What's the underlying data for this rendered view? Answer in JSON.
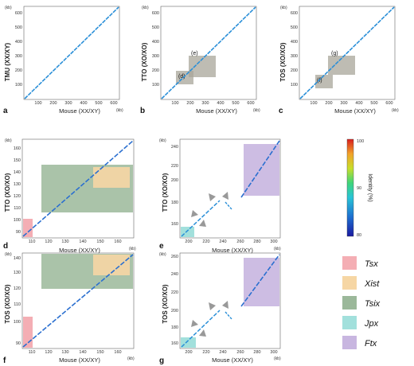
{
  "panels": [
    {
      "id": "a",
      "label": "a",
      "ylabel": "TMU (XX/XY)",
      "xlabel": "Mouse (XX/XY)",
      "xticks": [
        "100",
        "200",
        "300",
        "400",
        "500",
        "600"
      ],
      "yticks": [
        "100",
        "200",
        "300",
        "400",
        "500",
        "600"
      ],
      "unit": "(kb)",
      "boxes": []
    },
    {
      "id": "b",
      "label": "b",
      "ylabel": "TTO (XO/XO)",
      "xlabel": "Mouse (XX/XY)",
      "xticks": [
        "100",
        "200",
        "300",
        "400",
        "500",
        "600"
      ],
      "yticks": [
        "100",
        "200",
        "300",
        "400",
        "500",
        "600"
      ],
      "unit": "(kb)",
      "boxes": [
        {
          "label": "(d)",
          "color": "#a8a69a"
        },
        {
          "label": "(e)",
          "color": "#a8a69a"
        }
      ]
    },
    {
      "id": "c",
      "label": "c",
      "ylabel": "TOS (XO/XO)",
      "xlabel": "Mouse (XX/XY)",
      "xticks": [
        "100",
        "200",
        "300",
        "400",
        "500",
        "600"
      ],
      "yticks": [
        "100",
        "200",
        "300",
        "400",
        "500",
        "600"
      ],
      "unit": "(kb)",
      "boxes": [
        {
          "label": "(f)",
          "color": "#a8a69a"
        },
        {
          "label": "(g)",
          "color": "#a8a69a"
        }
      ]
    },
    {
      "id": "d",
      "label": "d",
      "ylabel": "TTO (XO/XO)",
      "xlabel": "Mouse (XX/XY)",
      "xticks": [
        "110",
        "120",
        "130",
        "140",
        "150",
        "160"
      ],
      "yticks": [
        "90",
        "100",
        "110",
        "120",
        "130",
        "140",
        "150",
        "160"
      ],
      "unit": "(kb)",
      "boxes": []
    },
    {
      "id": "e",
      "label": "e",
      "ylabel": "TTO (XO/XO)",
      "xlabel": "Mouse (XX/XY)",
      "xticks": [
        "200",
        "220",
        "240",
        "260",
        "280",
        "300"
      ],
      "yticks": [
        "160",
        "180",
        "200",
        "220",
        "240"
      ],
      "unit": "(kb)",
      "boxes": []
    },
    {
      "id": "f",
      "label": "f",
      "ylabel": "TOS (XO/XO)",
      "xlabel": "Mouse (XX/XY)",
      "xticks": [
        "110",
        "120",
        "130",
        "140",
        "150",
        "160"
      ],
      "yticks": [
        "90",
        "100",
        "110",
        "120",
        "130",
        "140"
      ],
      "unit": "(kb)",
      "boxes": []
    },
    {
      "id": "g",
      "label": "g",
      "ylabel": "TOS (XO/XO)",
      "xlabel": "Mouse (XX/XY)",
      "xticks": [
        "200",
        "220",
        "240",
        "260",
        "280",
        "300"
      ],
      "yticks": [
        "160",
        "180",
        "200",
        "220",
        "240",
        "260"
      ],
      "unit": "(kb)",
      "boxes": []
    }
  ],
  "colorbar": {
    "title": "Identity (%)",
    "ticks": [
      "100",
      "90",
      "80"
    ]
  },
  "legend": [
    {
      "name": "Tsx",
      "color": "#f4aeb4"
    },
    {
      "name": "Xist",
      "color": "#f6d6a4"
    },
    {
      "name": "Tsix",
      "color": "#9bb89a"
    },
    {
      "name": "Jpx",
      "color": "#a2e0dc"
    },
    {
      "name": "Ftx",
      "color": "#c8b6e0"
    }
  ]
}
